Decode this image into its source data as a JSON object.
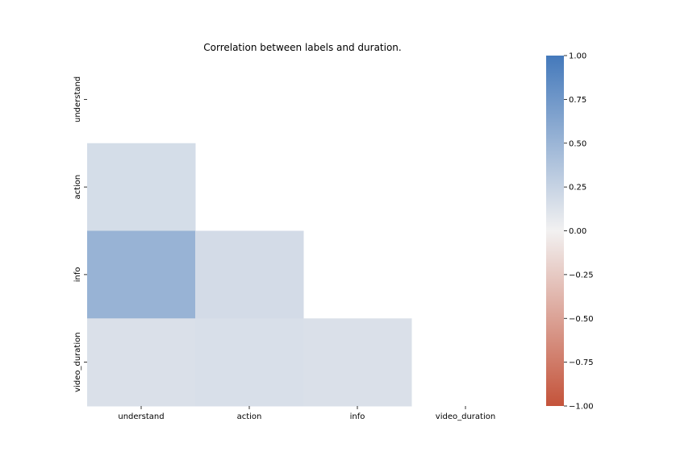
{
  "chart_data": {
    "type": "heatmap",
    "title": "Correlation between labels and duration.",
    "xlabel": "",
    "ylabel": "",
    "x_categories": [
      "understand",
      "action",
      "info",
      "video_duration"
    ],
    "y_categories": [
      "understand",
      "action",
      "info",
      "video_duration"
    ],
    "mask": "upper triangle including diagonal",
    "cells": [
      {
        "row": "action",
        "col": "understand",
        "value": 0.17
      },
      {
        "row": "info",
        "col": "understand",
        "value": 0.52
      },
      {
        "row": "info",
        "col": "action",
        "value": 0.18
      },
      {
        "row": "video_duration",
        "col": "understand",
        "value": 0.14
      },
      {
        "row": "video_duration",
        "col": "action",
        "value": 0.15
      },
      {
        "row": "video_duration",
        "col": "info",
        "value": 0.14
      }
    ],
    "colorbar": {
      "range": [
        -1.0,
        1.0
      ],
      "ticks": [
        1.0,
        0.75,
        0.5,
        0.25,
        0.0,
        -0.25,
        -0.5,
        -0.75,
        -1.0
      ],
      "tick_labels": [
        "1.00",
        "0.75",
        "0.50",
        "0.25",
        "0.00",
        "−0.25",
        "−0.50",
        "−0.75",
        "−1.00"
      ],
      "colors": {
        "low": "#c4533a",
        "mid": "#f2f1f1",
        "high": "#4479bb"
      }
    }
  }
}
